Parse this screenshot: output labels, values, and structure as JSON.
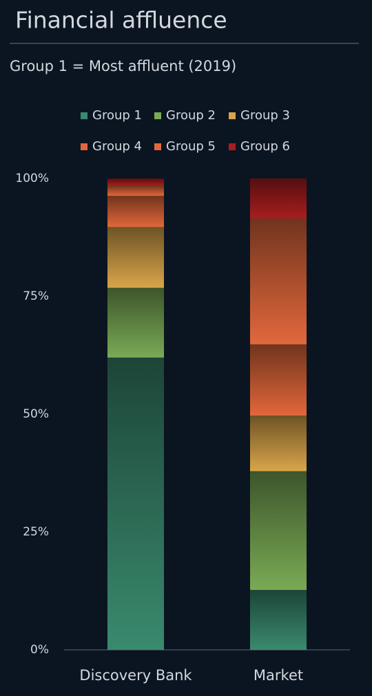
{
  "chart_data": {
    "type": "stacked_bar",
    "title": "Financial affluence",
    "subtitle": "Group 1 = Most affluent (2019)",
    "categories": [
      "Discovery Bank",
      "Market"
    ],
    "series": [
      {
        "name": "Group 1",
        "color": "#3a8a6e",
        "values": [
          62.0,
          12.7
        ]
      },
      {
        "name": "Group 2",
        "color": "#7aaa55",
        "values": [
          14.8,
          25.2
        ]
      },
      {
        "name": "Group 3",
        "color": "#d9a54a",
        "values": [
          12.9,
          11.8
        ]
      },
      {
        "name": "Group 4",
        "color": "#e2673a",
        "values": [
          6.6,
          15.1
        ]
      },
      {
        "name": "Group 5",
        "color": "#e2683c",
        "values": [
          2.2,
          26.7
        ]
      },
      {
        "name": "Group 6",
        "color": "#a81e1e",
        "values": [
          1.5,
          8.5
        ]
      }
    ],
    "ylim": [
      0,
      100
    ],
    "yticks": [
      {
        "value": 0,
        "label": "0%"
      },
      {
        "value": 25,
        "label": "25%"
      },
      {
        "value": 50,
        "label": "50%"
      },
      {
        "value": 75,
        "label": "75%"
      },
      {
        "value": 100,
        "label": "100%"
      }
    ]
  }
}
